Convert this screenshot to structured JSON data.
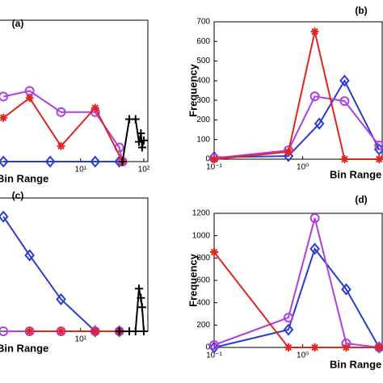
{
  "chart_data": [
    {
      "type": "line",
      "title": "(a)",
      "x_label": "Bin Range",
      "xscale": "log",
      "xlim": [
        0.5,
        116
      ],
      "ylim": [
        0,
        100
      ],
      "xticks": [
        {
          "value": 10,
          "label": "10¹"
        },
        {
          "value": 100,
          "label": "10²"
        }
      ],
      "series": [
        {
          "color": "#2b3dcc",
          "marker": "diamond",
          "x": [
            0.6,
            3.3,
            17,
            41
          ],
          "values": [
            0,
            0,
            0,
            0
          ]
        },
        {
          "color": "#b040e0",
          "marker": "circle",
          "x": [
            0.6,
            1.56,
            4.9,
            17,
            41,
            46
          ],
          "values": [
            46,
            50,
            35,
            35,
            10,
            0
          ]
        },
        {
          "color": "#e0261f",
          "marker": "star",
          "x": [
            0.6,
            1.56,
            4.9,
            17,
            46
          ],
          "values": [
            31,
            45,
            11,
            38,
            0
          ]
        },
        {
          "color": "#000000",
          "marker": "plus",
          "x": [
            46,
            59,
            74,
            84,
            90,
            94,
            100
          ],
          "values": [
            0,
            30,
            30,
            14,
            20,
            10,
            15
          ]
        }
      ]
    },
    {
      "type": "line",
      "title": "(b)",
      "x_label": "Bin Range",
      "y_label": "Frequency",
      "xscale": "log",
      "xlim": [
        0.1,
        7.9
      ],
      "ylim": [
        0,
        700
      ],
      "xticks": [
        {
          "value": 0.1,
          "label": "10⁻¹"
        },
        {
          "value": 1,
          "label": "10⁰"
        }
      ],
      "yticks": [
        0,
        100,
        200,
        300,
        400,
        500,
        600,
        700
      ],
      "series": [
        {
          "color": "#2b3dcc",
          "marker": "diamond",
          "x": [
            0.1,
            0.69,
            1.54,
            2.97,
            7.3
          ],
          "values": [
            10,
            16,
            181,
            400,
            50
          ]
        },
        {
          "color": "#b040e0",
          "marker": "circle",
          "x": [
            0.1,
            0.69,
            1.37,
            2.97,
            7.3
          ],
          "values": [
            5,
            45,
            320,
            296,
            70
          ]
        },
        {
          "color": "#e0261f",
          "marker": "star",
          "x": [
            0.1,
            0.69,
            1.37,
            2.97,
            7.3
          ],
          "values": [
            0,
            37,
            650,
            0,
            0
          ]
        }
      ]
    },
    {
      "type": "line",
      "title": "(c)",
      "x_label": "Bin Range",
      "xscale": "log",
      "xlim": [
        0.5,
        116
      ],
      "ylim": [
        0,
        100
      ],
      "xticks": [
        {
          "value": 10,
          "label": "10¹"
        }
      ],
      "series": [
        {
          "color": "#2b3dcc",
          "marker": "diamond",
          "x": [
            0.6,
            1.56,
            4.9,
            17,
            41
          ],
          "values": [
            86,
            57,
            24,
            0,
            0
          ]
        },
        {
          "color": "#b040e0",
          "marker": "circle",
          "x": [
            0.6,
            1.56,
            4.9,
            17,
            41
          ],
          "values": [
            0,
            0,
            0,
            0,
            0
          ]
        },
        {
          "color": "#e0261f",
          "marker": "star",
          "x": [
            1.56,
            4.9,
            17,
            41
          ],
          "values": [
            0,
            0,
            0,
            0
          ]
        },
        {
          "color": "#000000",
          "marker": "plus",
          "x": [
            41,
            59,
            74,
            84,
            90,
            94,
            100
          ],
          "values": [
            0,
            0,
            0,
            32,
            25,
            18,
            0
          ]
        }
      ]
    },
    {
      "type": "line",
      "title": "(d)",
      "x_label": "Bin Range",
      "y_label": "Frequency",
      "xscale": "log",
      "xlim": [
        0.1,
        7.9
      ],
      "ylim": [
        0,
        1200
      ],
      "xticks": [
        {
          "value": 0.1,
          "label": "10⁻¹"
        },
        {
          "value": 1,
          "label": "10⁰"
        }
      ],
      "yticks": [
        0,
        200,
        400,
        600,
        800,
        1000,
        1200
      ],
      "series": [
        {
          "color": "#2b3dcc",
          "marker": "diamond",
          "x": [
            0.1,
            0.69,
            1.37,
            3.1,
            7.3
          ],
          "values": [
            0,
            159,
            882,
            520,
            0
          ]
        },
        {
          "color": "#b040e0",
          "marker": "circle",
          "x": [
            0.1,
            0.69,
            1.37,
            3.1,
            7.3
          ],
          "values": [
            22,
            267,
            1157,
            36,
            0
          ]
        },
        {
          "color": "#e0261f",
          "marker": "star",
          "x": [
            0.1,
            0.69,
            1.37,
            3.1,
            7.3
          ],
          "values": [
            853,
            0,
            0,
            0,
            0
          ]
        }
      ]
    }
  ]
}
